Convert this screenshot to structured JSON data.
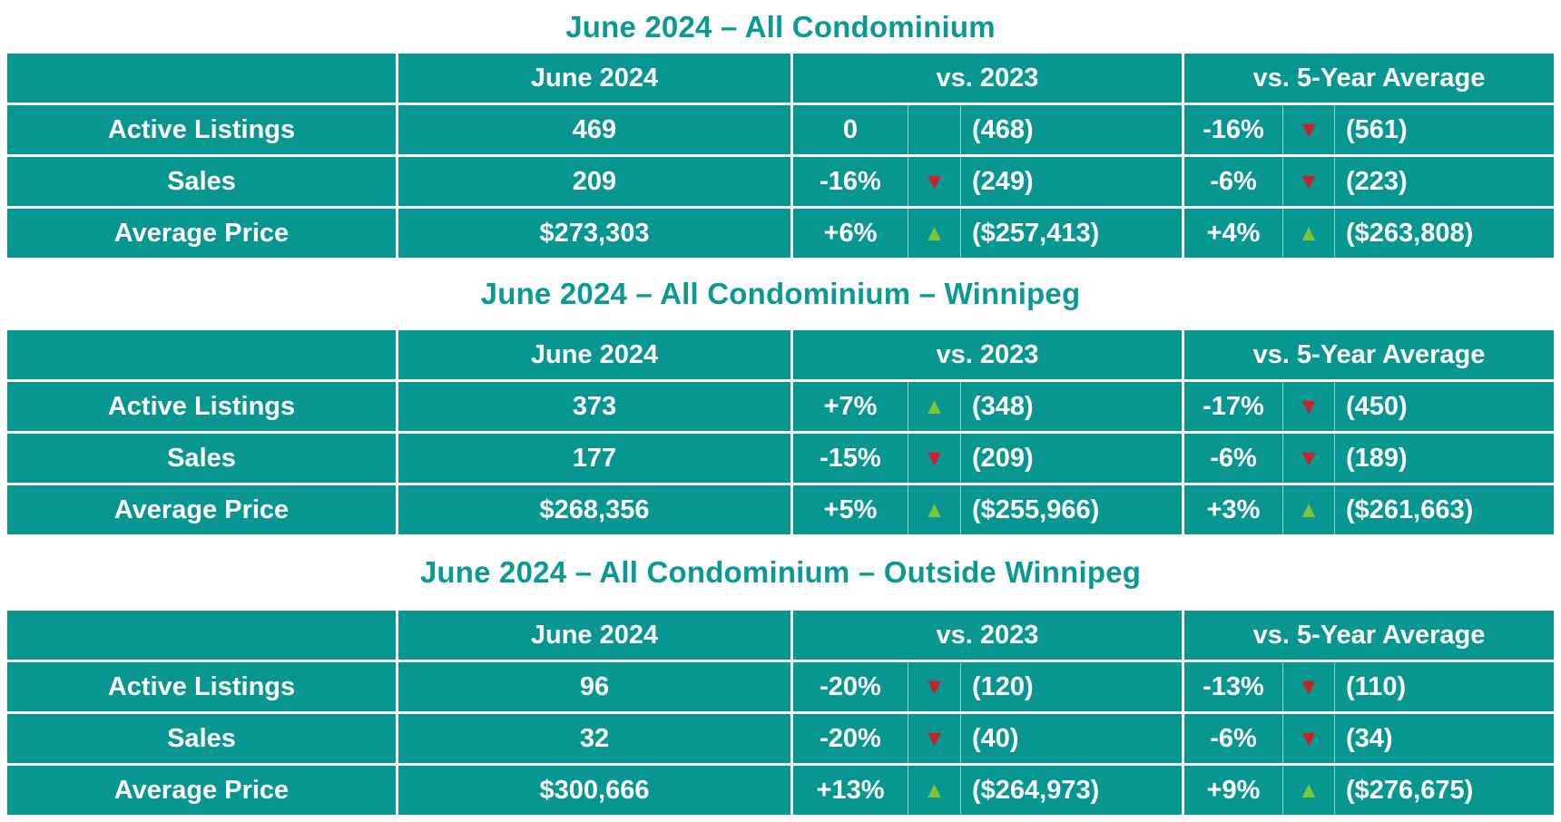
{
  "colors": {
    "teal_background": "#089690",
    "title_text": "#0b9a93",
    "cell_text": "#ffffff",
    "up_arrow_green": "#7ec633",
    "down_arrow_red": "#cc2027"
  },
  "icons": {
    "up": "▲",
    "down": "▼"
  },
  "headers": {
    "corner": "",
    "june": "June 2024",
    "vs_2023": "vs. 2023",
    "vs_5yr": "vs. 5-Year Average"
  },
  "tables": [
    {
      "title": "June 2024 – All Condominium",
      "rows": [
        {
          "label": "Active Listings",
          "current": "469",
          "vs_2023": {
            "pct": "0",
            "dir": "none",
            "ref": "(468)"
          },
          "vs_5yr": {
            "pct": "-16%",
            "dir": "down",
            "ref": "(561)"
          }
        },
        {
          "label": "Sales",
          "current": "209",
          "vs_2023": {
            "pct": "-16%",
            "dir": "down",
            "ref": "(249)"
          },
          "vs_5yr": {
            "pct": "-6%",
            "dir": "down",
            "ref": "(223)"
          }
        },
        {
          "label": "Average Price",
          "current": "$273,303",
          "vs_2023": {
            "pct": "+6%",
            "dir": "up",
            "ref": "($257,413)"
          },
          "vs_5yr": {
            "pct": "+4%",
            "dir": "up",
            "ref": "($263,808)"
          }
        }
      ]
    },
    {
      "title": "June 2024 – All Condominium – Winnipeg",
      "rows": [
        {
          "label": "Active Listings",
          "current": "373",
          "vs_2023": {
            "pct": "+7%",
            "dir": "up",
            "ref": "(348)"
          },
          "vs_5yr": {
            "pct": "-17%",
            "dir": "down",
            "ref": "(450)"
          }
        },
        {
          "label": "Sales",
          "current": "177",
          "vs_2023": {
            "pct": "-15%",
            "dir": "down",
            "ref": "(209)"
          },
          "vs_5yr": {
            "pct": "-6%",
            "dir": "down",
            "ref": "(189)"
          }
        },
        {
          "label": "Average Price",
          "current": "$268,356",
          "vs_2023": {
            "pct": "+5%",
            "dir": "up",
            "ref": "($255,966)"
          },
          "vs_5yr": {
            "pct": "+3%",
            "dir": "up",
            "ref": "($261,663)"
          }
        }
      ]
    },
    {
      "title": "June 2024 – All Condominium – Outside Winnipeg",
      "rows": [
        {
          "label": "Active Listings",
          "current": "96",
          "vs_2023": {
            "pct": "-20%",
            "dir": "down",
            "ref": "(120)"
          },
          "vs_5yr": {
            "pct": "-13%",
            "dir": "down",
            "ref": "(110)"
          }
        },
        {
          "label": "Sales",
          "current": "32",
          "vs_2023": {
            "pct": "-20%",
            "dir": "down",
            "ref": "(40)"
          },
          "vs_5yr": {
            "pct": "-6%",
            "dir": "down",
            "ref": "(34)"
          }
        },
        {
          "label": "Average Price",
          "current": "$300,666",
          "vs_2023": {
            "pct": "+13%",
            "dir": "up",
            "ref": "($264,973)"
          },
          "vs_5yr": {
            "pct": "+9%",
            "dir": "up",
            "ref": "($276,675)"
          }
        }
      ]
    }
  ]
}
